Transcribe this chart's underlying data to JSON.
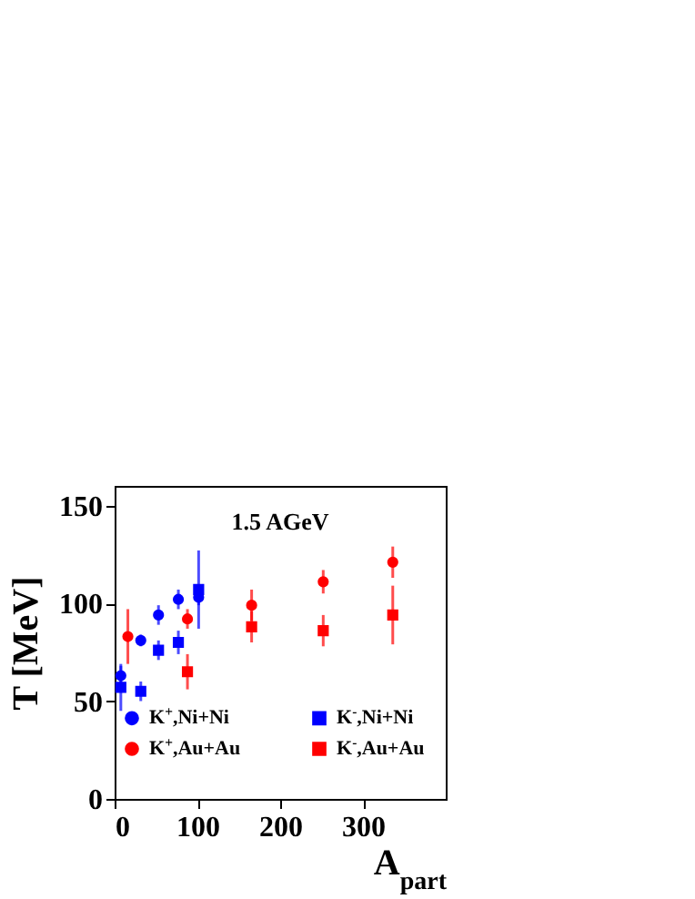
{
  "chart_data": {
    "type": "scatter",
    "annotations": [
      "1.5 AGeV"
    ],
    "xlabel": "A$_{part}$",
    "ylabel": "T [MeV]",
    "xlim": [
      0,
      400
    ],
    "ylim": [
      0,
      160
    ],
    "xticks": [
      0,
      100,
      200,
      300
    ],
    "yticks": [
      0,
      50,
      100,
      150
    ],
    "legend": "bottom",
    "series": [
      {
        "name": "K$^{+}$,Ni+Ni",
        "color": "#0000ff",
        "marker": "circle",
        "x": [
          7.5,
          31.6,
          53,
          77,
          101.5
        ],
        "values": [
          63,
          81,
          94,
          102,
          103
        ],
        "errors": [
          5,
          3,
          5,
          5,
          4
        ]
      },
      {
        "name": "K$^{-}$,Ni+Ni",
        "color": "#0000ff",
        "marker": "square",
        "x": [
          7.5,
          31.6,
          53,
          77,
          101.5
        ],
        "values": [
          57,
          55,
          76,
          80,
          107
        ],
        "errors": [
          12,
          5,
          5,
          6,
          20
        ]
      },
      {
        "name": "K$^{+}$,Au+Au",
        "color": "#ff0000",
        "marker": "circle",
        "x": [
          16,
          88,
          165.5,
          252,
          336
        ],
        "values": [
          83,
          92,
          99,
          111,
          121
        ],
        "errors": [
          14,
          5,
          8,
          6,
          8
        ]
      },
      {
        "name": "K$^{-}$,Au+Au",
        "color": "#ff0000",
        "marker": "square",
        "x": [
          88,
          165.5,
          252,
          336
        ],
        "values": [
          65,
          88,
          86,
          94
        ],
        "errors": [
          9,
          8,
          8,
          15
        ]
      }
    ]
  }
}
